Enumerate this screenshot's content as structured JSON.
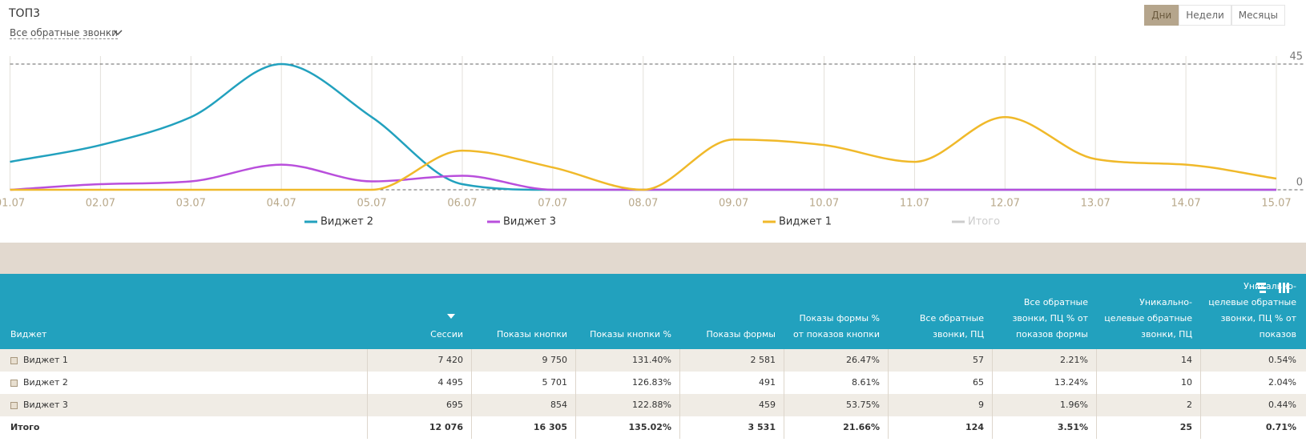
{
  "header": {
    "title": "ТОП3",
    "filter": "Все обратные звонки",
    "periods": [
      "Дни",
      "Недели",
      "Месяцы"
    ],
    "active_period": 0
  },
  "chart_data": {
    "type": "line",
    "categories": [
      "01.07",
      "02.07",
      "03.07",
      "04.07",
      "05.07",
      "06.07",
      "07.07",
      "08.07",
      "09.07",
      "10.07",
      "11.07",
      "12.07",
      "13.07",
      "14.07",
      "15.07"
    ],
    "series": [
      {
        "name": "Виджет 2",
        "color": "#22a1be",
        "values": [
          10,
          16,
          26,
          45,
          26,
          2,
          0,
          0,
          0,
          0,
          0,
          0,
          0,
          0,
          0
        ]
      },
      {
        "name": "Виджет 3",
        "color": "#b94fdc",
        "values": [
          0,
          2,
          3,
          9,
          3,
          5,
          0,
          0,
          0,
          0,
          0,
          0,
          0,
          0,
          0
        ]
      },
      {
        "name": "Виджет 1",
        "color": "#f0b92a",
        "values": [
          0,
          0,
          0,
          0,
          0,
          14,
          8,
          0,
          18,
          16,
          10,
          26,
          11,
          9,
          4
        ]
      },
      {
        "name": "Итого",
        "color": "#cccccc",
        "hidden": true,
        "values": [
          null,
          null,
          null,
          null,
          null,
          null,
          null,
          null,
          null,
          null,
          null,
          null,
          null,
          null,
          null
        ]
      }
    ],
    "ylim": [
      0,
      45
    ],
    "yticks": [
      0,
      45
    ],
    "grid": true
  },
  "table": {
    "columns": [
      "Виджет",
      "Сессии",
      "Показы кнопки",
      "Показы кнопки %",
      "Показы формы",
      "Показы формы % от показов кнопки",
      "Все обратные звонки, ПЦ",
      "Все обратные звонки, ПЦ % от показов формы",
      "Уникально-целевые обратные звонки, ПЦ",
      "Уникально-целевые обратные звонки, ПЦ % от показов"
    ],
    "rows": [
      [
        "Виджет 1",
        "7 420",
        "9 750",
        "131.40%",
        "2 581",
        "26.47%",
        "57",
        "2.21%",
        "14",
        "0.54%"
      ],
      [
        "Виджет 2",
        "4 495",
        "5 701",
        "126.83%",
        "491",
        "8.61%",
        "65",
        "13.24%",
        "10",
        "2.04%"
      ],
      [
        "Виджет 3",
        "695",
        "854",
        "122.88%",
        "459",
        "53.75%",
        "9",
        "1.96%",
        "2",
        "0.44%"
      ]
    ],
    "total": [
      "Итого",
      "12 076",
      "16 305",
      "135.02%",
      "3 531",
      "21.66%",
      "124",
      "3.51%",
      "25",
      "0.71%"
    ]
  }
}
